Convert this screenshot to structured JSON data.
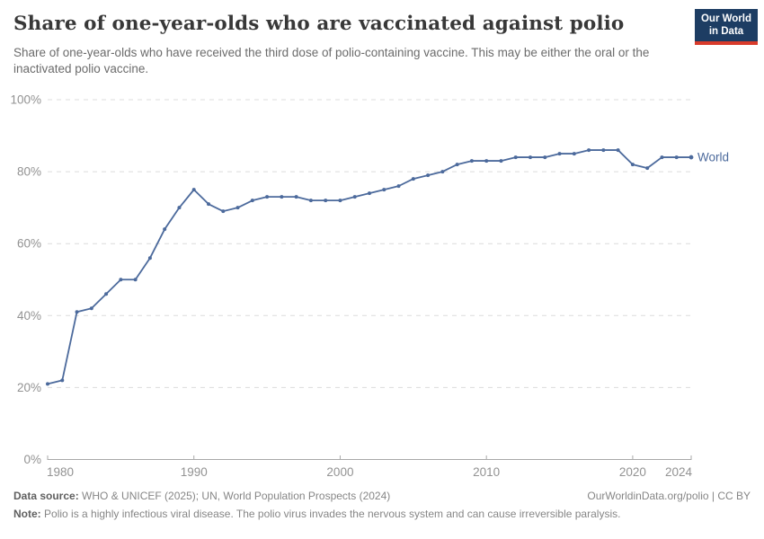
{
  "header": {
    "title": "Share of one-year-olds who are vaccinated against polio",
    "subtitle": "Share of one-year-olds who have received the third dose of polio-containing vaccine. This may be either the oral or the inactivated polio vaccine.",
    "logo": {
      "line1": "Our World",
      "line2": "in Data"
    }
  },
  "chart_data": {
    "type": "line",
    "title": "Share of one-year-olds who are vaccinated against polio",
    "xlabel": "",
    "ylabel": "",
    "xlim": [
      1980,
      2024
    ],
    "ylim": [
      0,
      100
    ],
    "x_ticks": [
      1980,
      1990,
      2000,
      2010,
      2020,
      2024
    ],
    "y_ticks": [
      0,
      20,
      40,
      60,
      80,
      100
    ],
    "y_tick_suffix": "%",
    "grid": "horizontal-dashed",
    "legend": "inline-end-label",
    "x": [
      1980,
      1981,
      1982,
      1983,
      1984,
      1985,
      1986,
      1987,
      1988,
      1989,
      1990,
      1991,
      1992,
      1993,
      1994,
      1995,
      1996,
      1997,
      1998,
      1999,
      2000,
      2001,
      2002,
      2003,
      2004,
      2005,
      2006,
      2007,
      2008,
      2009,
      2010,
      2011,
      2012,
      2013,
      2014,
      2015,
      2016,
      2017,
      2018,
      2019,
      2020,
      2021,
      2022,
      2023,
      2024
    ],
    "series": [
      {
        "name": "World",
        "values": [
          21,
          22,
          41,
          42,
          46,
          50,
          50,
          56,
          64,
          70,
          75,
          71,
          69,
          70,
          72,
          73,
          73,
          73,
          72,
          72,
          72,
          73,
          74,
          75,
          76,
          78,
          79,
          80,
          82,
          83,
          83,
          83,
          84,
          84,
          84,
          85,
          85,
          86,
          86,
          86,
          82,
          81,
          84,
          84,
          84
        ]
      }
    ]
  },
  "footer": {
    "data_source_label": "Data source:",
    "data_source": "WHO & UNICEF (2025); UN, World Population Prospects (2024)",
    "note_label": "Note:",
    "note": "Polio is a highly infectious viral disease. The polio virus invades the nervous system and can cause irreversible paralysis.",
    "attribution": "OurWorldinData.org/polio | CC BY"
  },
  "colors": {
    "line": "#4C6A9C",
    "entity_label": "#4C6A9C",
    "grid": "#dcdcdc",
    "axis": "#a8a8a8",
    "tick_label": "#929292",
    "logo_background": "#1d3d63",
    "logo_accent": "#d93b2b"
  }
}
